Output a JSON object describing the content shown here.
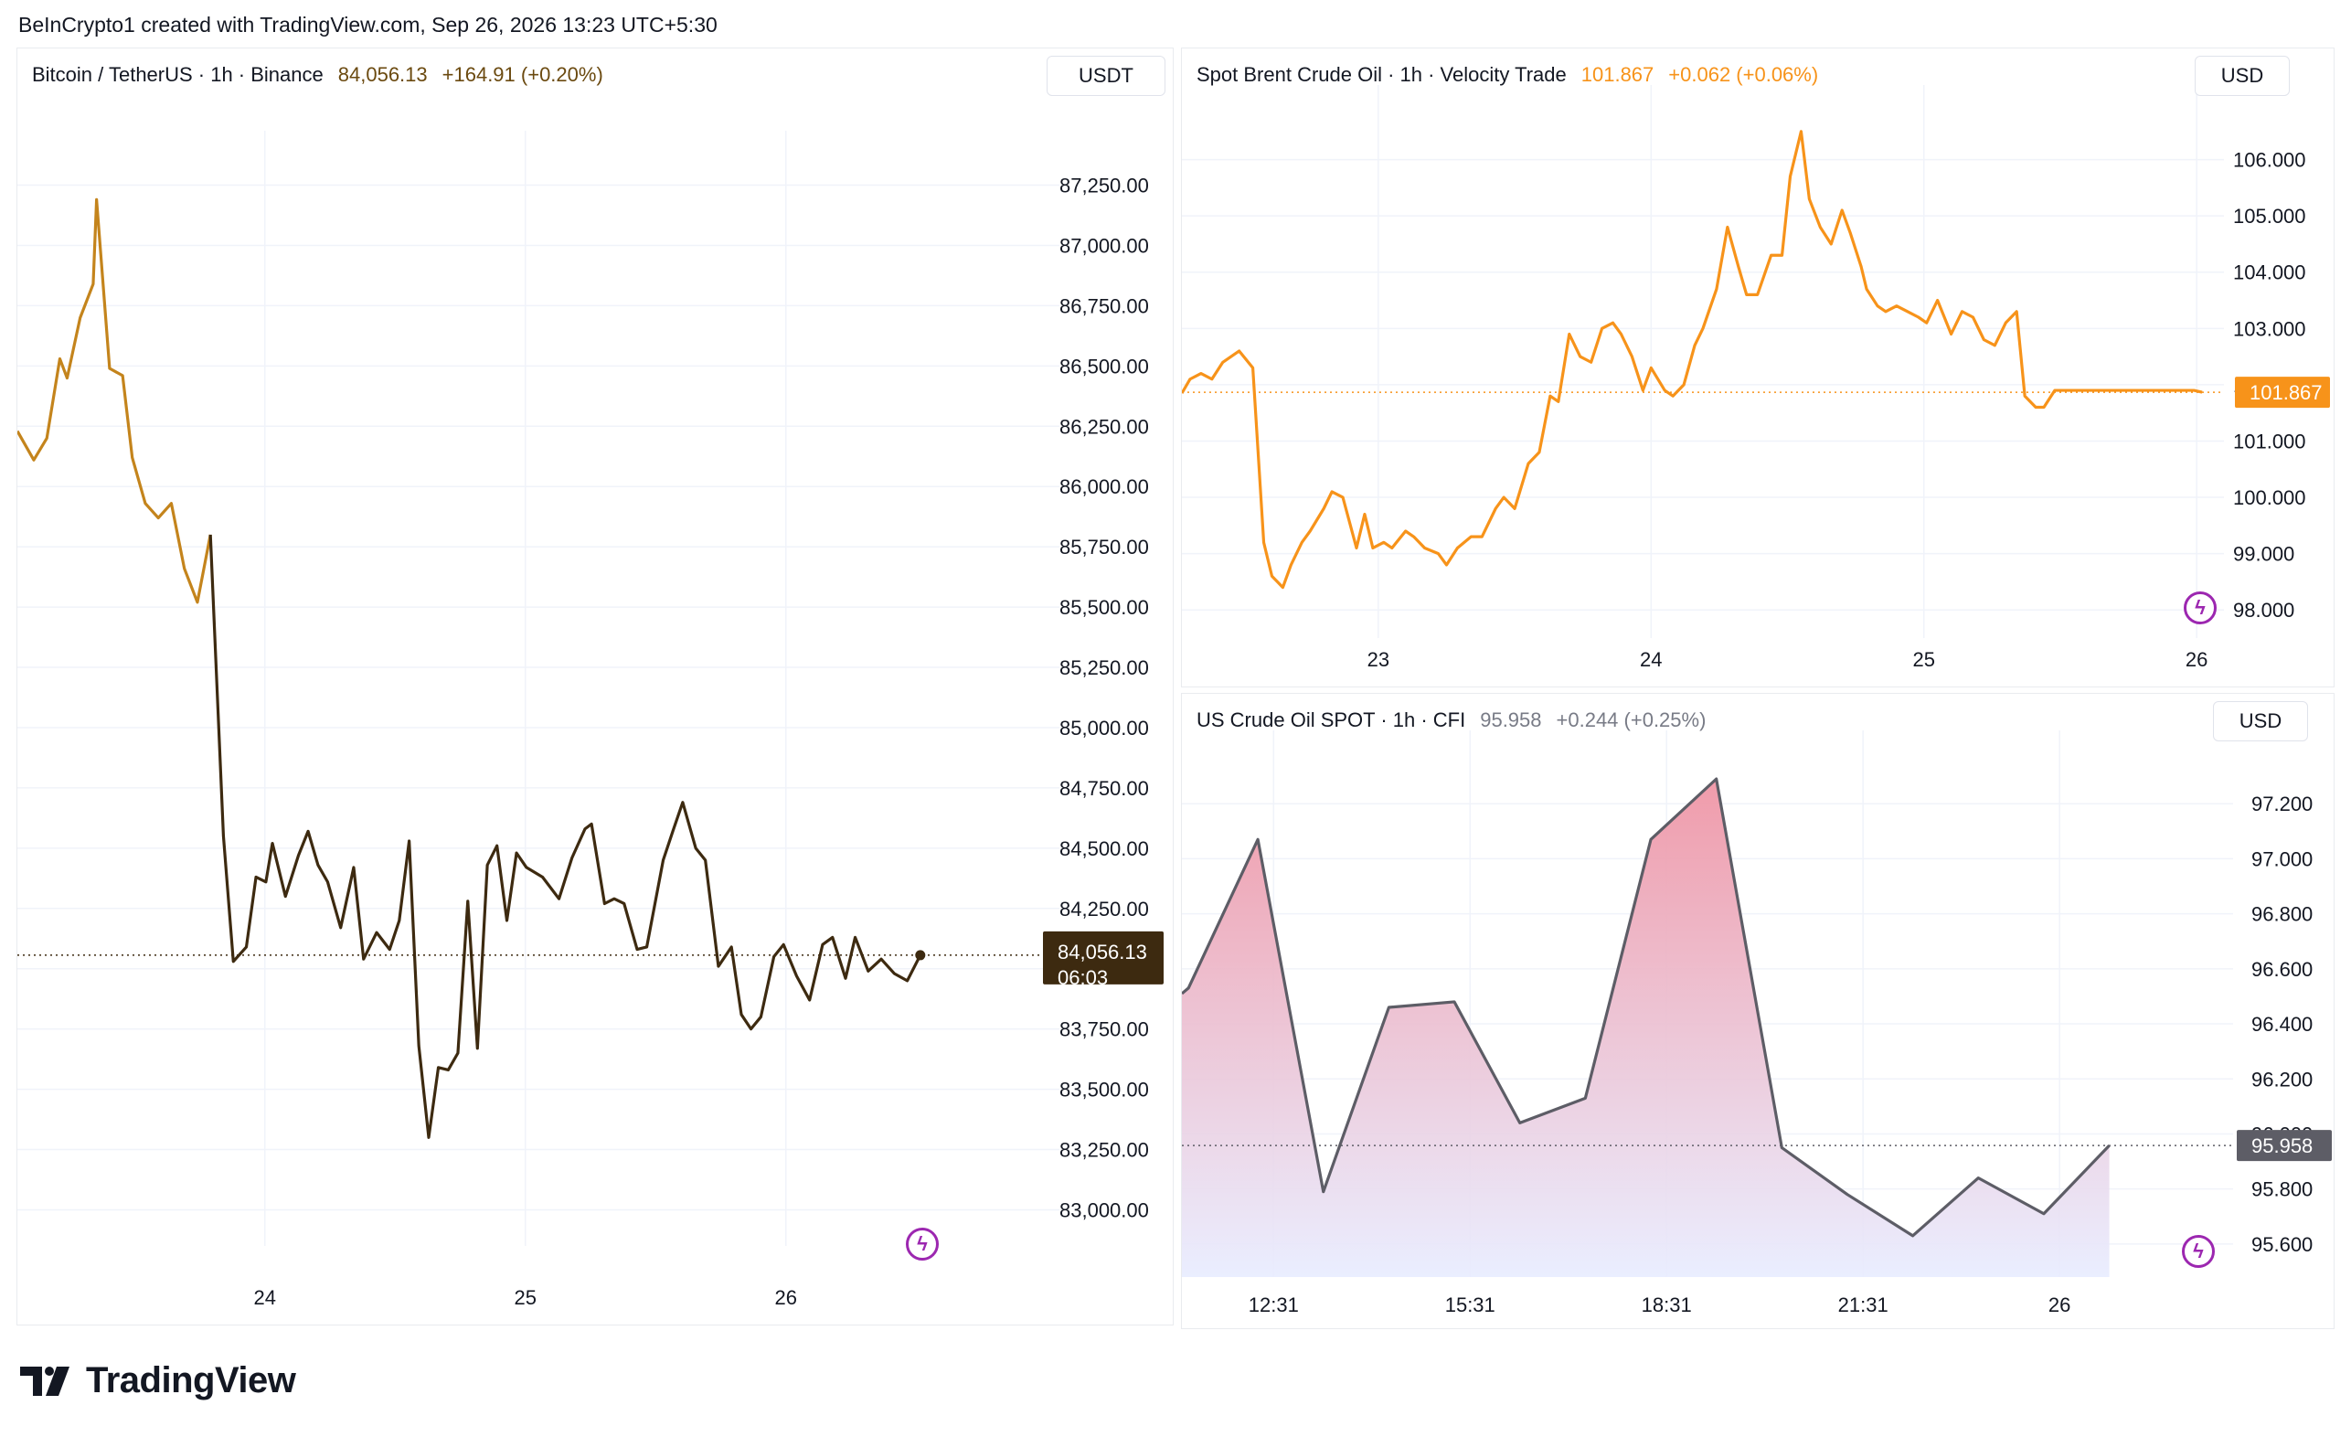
{
  "header": {
    "credit": "BeInCrypto1 created with TradingView.com, Sep 26, 2026 13:23 UTC+5:30"
  },
  "brand": {
    "name": "TradingView"
  },
  "colors": {
    "btc_line_early": "#c4841c",
    "btc_line_late": "#3d2a10",
    "btc_label_bg": "#3d2a10",
    "brent_line": "#f7931a",
    "brent_label_bg": "#f7931a",
    "wti_line": "#5d5d66",
    "wti_label_bg": "#5d5d66",
    "wti_fill_top": "#ef96a6",
    "wti_fill_bottom": "#e8ecff",
    "icon_purple": "#9c27b0",
    "up_text_btc": "#6b4a10",
    "grid": "#f0f3fa"
  },
  "panels": {
    "btc": {
      "symbol": "Bitcoin / TetherUS · 1h · Binance",
      "price": "84,056.13",
      "change": "+164.91 (+0.20%)",
      "currency": "USDT",
      "last_label": "84,056.13",
      "countdown": "06:03",
      "icon": "lightning-icon"
    },
    "brent": {
      "symbol": "Spot Brent Crude Oil · 1h · Velocity Trade",
      "price": "101.867",
      "change": "+0.062 (+0.06%)",
      "currency": "USD",
      "last_label": "101.867",
      "icon": "lightning-icon"
    },
    "wti": {
      "symbol": "US Crude Oil SPOT · 1h · CFI",
      "price": "95.958",
      "change": "+0.244 (+0.25%)",
      "currency": "USD",
      "last_label": "95.958",
      "icon": "lightning-icon"
    }
  },
  "chart_data": [
    {
      "type": "line",
      "title": "Bitcoin / TetherUS · 1h · Binance",
      "xlim": [
        23.05,
        27.05
      ],
      "ylim": [
        82850,
        87400
      ],
      "y_ticks": [
        83000,
        83250,
        83500,
        83750,
        84000,
        84250,
        84500,
        84750,
        85000,
        85250,
        85500,
        85750,
        86000,
        86250,
        86500,
        86750,
        87000,
        87250
      ],
      "y_tick_labels": [
        "83,000.00",
        "83,250.00",
        "83,500.00",
        "83,750.00",
        "84,000.00",
        "84,250.00",
        "84,500.00",
        "84,750.00",
        "85,000.00",
        "85,250.00",
        "85,500.00",
        "85,750.00",
        "86,000.00",
        "86,250.00",
        "86,500.00",
        "86,750.00",
        "87,000.00",
        "87,250.00"
      ],
      "x_ticks": [
        24,
        25,
        26
      ],
      "x_tick_labels": [
        "24",
        "25",
        "26"
      ],
      "last_value": 84056.13,
      "series": [
        {
          "x": [
            23.05,
            23.113,
            23.163,
            23.213,
            23.241,
            23.291,
            23.341,
            23.354,
            23.404,
            23.454,
            23.491,
            23.541,
            23.591,
            23.641,
            23.691,
            23.741,
            23.791,
            23.841,
            23.879,
            23.929,
            23.966,
            24.004,
            24.029,
            24.079,
            24.129,
            24.166,
            24.204,
            24.241,
            24.291,
            24.341,
            24.379,
            24.429,
            24.479,
            24.516,
            24.554,
            24.591,
            24.629,
            24.666,
            24.704,
            24.741,
            24.779,
            24.816,
            24.854,
            24.891,
            24.929,
            24.966,
            25.004,
            25.066,
            25.129,
            25.179,
            25.229,
            25.254,
            25.304,
            25.341,
            25.379,
            25.429,
            25.466,
            25.529,
            25.566,
            25.604,
            25.654,
            25.691,
            25.741,
            25.791,
            25.829,
            25.866,
            25.904,
            25.954,
            25.991,
            26.041,
            26.091,
            26.141,
            26.179,
            26.229,
            26.266,
            26.316,
            26.366,
            26.416,
            26.466,
            26.516
          ],
          "y": [
            86230,
            86110,
            86200,
            86530,
            86450,
            86700,
            86840,
            87190,
            86490,
            86460,
            86120,
            85930,
            85870,
            85930,
            85660,
            85520,
            85800,
            84550,
            84030,
            84090,
            84380,
            84360,
            84520,
            84300,
            84470,
            84570,
            84430,
            84360,
            84170,
            84420,
            84040,
            84150,
            84080,
            84200,
            84530,
            83680,
            83300,
            83590,
            83580,
            83650,
            84280,
            83670,
            84430,
            84510,
            84200,
            84480,
            84420,
            84380,
            84290,
            84460,
            84580,
            84600,
            84270,
            84290,
            84270,
            84080,
            84090,
            84450,
            84570,
            84690,
            84500,
            84450,
            84010,
            84090,
            83810,
            83750,
            83800,
            84050,
            84100,
            83970,
            83870,
            84100,
            84130,
            83960,
            84130,
            83990,
            84040,
            83980,
            83950,
            84056
          ]
        }
      ]
    },
    {
      "type": "line",
      "title": "Spot Brent Crude Oil · 1h · Velocity Trade",
      "xlim": [
        22.28,
        26.1
      ],
      "ylim": [
        97.5,
        107.0
      ],
      "y_ticks": [
        98,
        99,
        100,
        101,
        102,
        103,
        104,
        105,
        106
      ],
      "y_tick_labels": [
        "98.000",
        "99.000",
        "100.000",
        "101.000",
        "102.000",
        "103.000",
        "104.000",
        "105.000",
        "106.000"
      ],
      "x_ticks": [
        23,
        24,
        25,
        26
      ],
      "x_tick_labels": [
        "23",
        "24",
        "25",
        "26"
      ],
      "last_value": 101.867,
      "series": [
        {
          "x": [
            22.28,
            22.31,
            22.35,
            22.39,
            22.43,
            22.49,
            22.54,
            22.58,
            22.61,
            22.65,
            22.68,
            22.72,
            22.75,
            22.8,
            22.83,
            22.87,
            22.92,
            22.95,
            22.98,
            23.02,
            23.05,
            23.1,
            23.13,
            23.17,
            23.22,
            23.25,
            23.29,
            23.34,
            23.38,
            23.43,
            23.46,
            23.5,
            23.55,
            23.59,
            23.63,
            23.66,
            23.7,
            23.74,
            23.78,
            23.82,
            23.86,
            23.89,
            23.93,
            23.97,
            24.0,
            24.05,
            24.08,
            24.12,
            24.16,
            24.19,
            24.24,
            24.28,
            24.32,
            24.35,
            24.39,
            24.44,
            24.48,
            24.51,
            24.55,
            24.58,
            24.62,
            24.66,
            24.7,
            24.73,
            24.77,
            24.79,
            24.83,
            24.86,
            24.9,
            24.94,
            24.98,
            25.01,
            25.05,
            25.1,
            25.14,
            25.18,
            25.22,
            25.26,
            25.3,
            25.34,
            25.37,
            25.41,
            25.44,
            25.48,
            25.52,
            25.56,
            25.6,
            25.64,
            25.69,
            25.72,
            25.76,
            25.81,
            25.86,
            25.9,
            25.94,
            25.99,
            26.02
          ],
          "y": [
            101.85,
            102.1,
            102.2,
            102.1,
            102.4,
            102.6,
            102.3,
            99.2,
            98.6,
            98.4,
            98.8,
            99.2,
            99.4,
            99.8,
            100.1,
            100.0,
            99.1,
            99.7,
            99.1,
            99.2,
            99.1,
            99.4,
            99.3,
            99.1,
            99.0,
            98.8,
            99.1,
            99.3,
            99.3,
            99.8,
            100.0,
            99.8,
            100.6,
            100.8,
            101.8,
            101.7,
            102.9,
            102.5,
            102.4,
            103.0,
            103.1,
            102.9,
            102.5,
            101.9,
            102.3,
            101.9,
            101.8,
            102.0,
            102.7,
            103.0,
            103.7,
            104.8,
            104.1,
            103.6,
            103.6,
            104.3,
            104.3,
            105.7,
            106.5,
            105.3,
            104.8,
            104.5,
            105.1,
            104.7,
            104.1,
            103.7,
            103.4,
            103.3,
            103.4,
            103.3,
            103.2,
            103.1,
            103.5,
            102.9,
            103.3,
            103.2,
            102.8,
            102.7,
            103.1,
            103.3,
            101.8,
            101.6,
            101.6,
            101.9,
            101.9,
            101.9,
            101.9,
            101.9,
            101.9,
            101.9,
            101.9,
            101.9,
            101.9,
            101.9,
            101.9,
            101.9,
            101.867
          ]
        }
      ]
    },
    {
      "type": "area",
      "title": "US Crude Oil SPOT · 1h · CFI",
      "xlim": [
        11.12,
        27.17
      ],
      "ylim": [
        95.48,
        97.4
      ],
      "y_ticks": [
        95.6,
        95.8,
        96.0,
        96.2,
        96.4,
        96.6,
        96.8,
        97.0,
        97.2
      ],
      "y_tick_labels": [
        "95.600",
        "95.800",
        "96.000",
        "96.200",
        "96.400",
        "96.600",
        "96.800",
        "97.000",
        "97.200"
      ],
      "x_ticks": [
        12.52,
        15.52,
        18.52,
        21.52,
        24.52
      ],
      "x_tick_labels": [
        "12:31",
        "15:31",
        "18:31",
        "21:31",
        "26"
      ],
      "last_value": 95.958,
      "series": [
        {
          "x": [
            11.12,
            11.22,
            12.28,
            13.28,
            14.28,
            15.28,
            16.28,
            17.28,
            18.28,
            19.28,
            20.28,
            21.28,
            22.28,
            23.28,
            24.28,
            25.28
          ],
          "y": [
            96.51,
            96.53,
            97.07,
            95.79,
            96.46,
            96.48,
            96.04,
            96.13,
            97.07,
            97.29,
            95.95,
            95.78,
            95.63,
            95.84,
            95.71,
            95.958
          ]
        }
      ]
    }
  ]
}
